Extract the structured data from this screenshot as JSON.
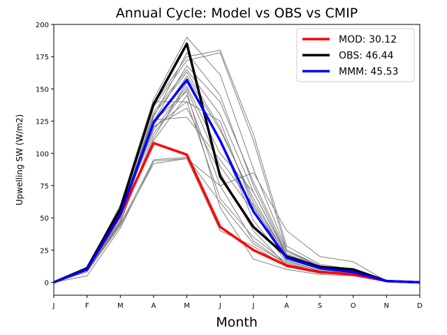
{
  "chart_data": {
    "type": "line",
    "title": "Annual Cycle: Model vs OBS vs CMIP",
    "xlabel": "Month",
    "ylabel": "Upwelling SW (W/m2)",
    "categories": [
      "J",
      "F",
      "M",
      "A",
      "M",
      "J",
      "J",
      "A",
      "S",
      "O",
      "N",
      "D"
    ],
    "ylim": [
      -10,
      200
    ],
    "yticks": [
      0,
      25,
      50,
      75,
      100,
      125,
      150,
      175,
      200
    ],
    "grid": false,
    "legend_position": "top-right",
    "series": [
      {
        "name": "MOD: 30.12",
        "color": "#ff0000",
        "values": [
          0,
          10,
          52,
          108,
          99,
          43,
          25,
          13,
          8,
          6,
          1,
          0
        ]
      },
      {
        "name": "OBS: 46.44",
        "color": "#000000",
        "values": [
          0,
          11,
          57,
          138,
          185,
          82,
          43,
          20,
          12,
          10,
          1,
          0
        ]
      },
      {
        "name": "MMM: 45.53",
        "color": "#0000ff",
        "values": [
          0,
          10,
          53,
          124,
          157,
          110,
          55,
          19,
          11,
          8,
          1,
          0
        ]
      }
    ],
    "ensemble_color": "#808080",
    "ensemble": [
      [
        0,
        11,
        60,
        142,
        190,
        161,
        88,
        25,
        12,
        8,
        1,
        0
      ],
      [
        0,
        10,
        58,
        138,
        175,
        180,
        115,
        28,
        14,
        10,
        1,
        0
      ],
      [
        0,
        10,
        56,
        136,
        172,
        178,
        110,
        25,
        13,
        9,
        1,
        0
      ],
      [
        0,
        10,
        55,
        128,
        178,
        145,
        75,
        22,
        12,
        9,
        1,
        0
      ],
      [
        0,
        10,
        55,
        125,
        168,
        140,
        78,
        24,
        12,
        8,
        1,
        0
      ],
      [
        0,
        10,
        54,
        140,
        140,
        125,
        58,
        22,
        11,
        8,
        1,
        0
      ],
      [
        0,
        11,
        53,
        132,
        165,
        130,
        70,
        22,
        11,
        8,
        1,
        0
      ],
      [
        0,
        10,
        52,
        122,
        160,
        118,
        65,
        20,
        10,
        8,
        1,
        0
      ],
      [
        0,
        10,
        52,
        118,
        152,
        100,
        70,
        21,
        10,
        8,
        1,
        0
      ],
      [
        0,
        10,
        50,
        126,
        128,
        95,
        60,
        18,
        10,
        7,
        1,
        0
      ],
      [
        0,
        10,
        50,
        120,
        140,
        65,
        35,
        15,
        8,
        6,
        1,
        0
      ],
      [
        0,
        10,
        48,
        110,
        145,
        75,
        32,
        14,
        8,
        6,
        1,
        0
      ],
      [
        0,
        9,
        46,
        115,
        150,
        90,
        55,
        17,
        9,
        7,
        1,
        0
      ],
      [
        0,
        9,
        45,
        95,
        97,
        62,
        30,
        14,
        8,
        6,
        1,
        0
      ],
      [
        0,
        8,
        44,
        92,
        96,
        40,
        28,
        12,
        7,
        6,
        1,
        0
      ],
      [
        0,
        5,
        42,
        94,
        96,
        75,
        85,
        40,
        20,
        16,
        1,
        0
      ],
      [
        0,
        9,
        47,
        112,
        155,
        110,
        48,
        16,
        9,
        7,
        1,
        0
      ],
      [
        0,
        10,
        51,
        121,
        135,
        85,
        40,
        13,
        7,
        6,
        1,
        0
      ],
      [
        0,
        9,
        50,
        125,
        148,
        58,
        18,
        10,
        6,
        5,
        1,
        0
      ],
      [
        0,
        10,
        54,
        130,
        163,
        120,
        62,
        21,
        11,
        8,
        1,
        0
      ]
    ]
  }
}
